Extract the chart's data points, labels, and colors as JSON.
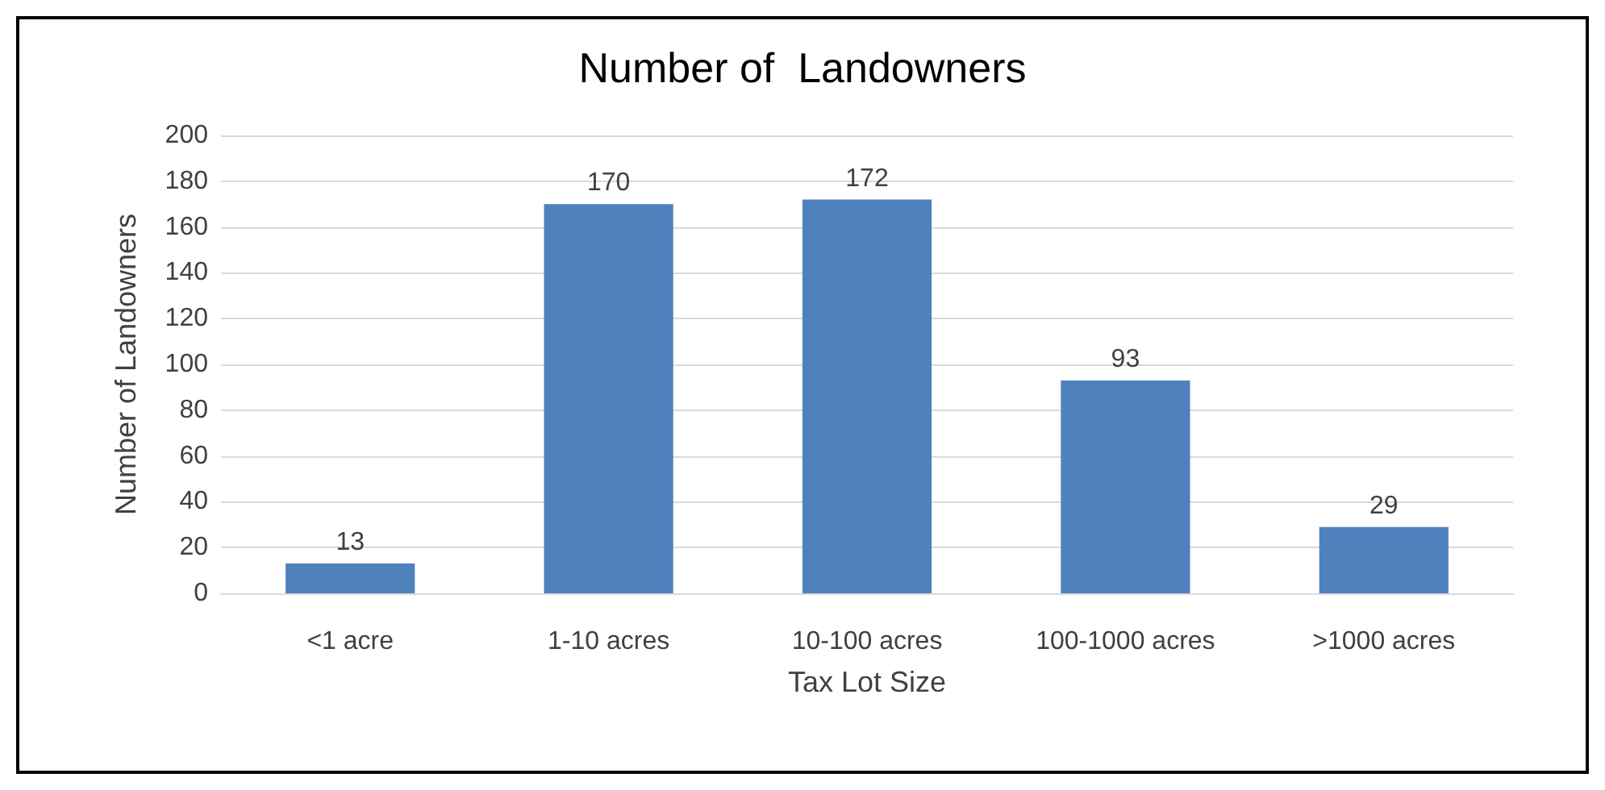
{
  "chart_data": {
    "type": "bar",
    "title": "Number of  Landowners",
    "xlabel": "Tax Lot Size",
    "ylabel": "Number of Landowners",
    "categories": [
      "<1 acre",
      "1-10 acres",
      "10-100 acres",
      "100-1000 acres",
      ">1000 acres"
    ],
    "values": [
      13,
      170,
      172,
      93,
      29
    ],
    "color": "#4f81bd",
    "ylim": [
      0,
      200
    ],
    "yticks": [
      0,
      20,
      40,
      60,
      80,
      100,
      120,
      140,
      160,
      180,
      200
    ],
    "grid": "y",
    "data_labels": true
  }
}
